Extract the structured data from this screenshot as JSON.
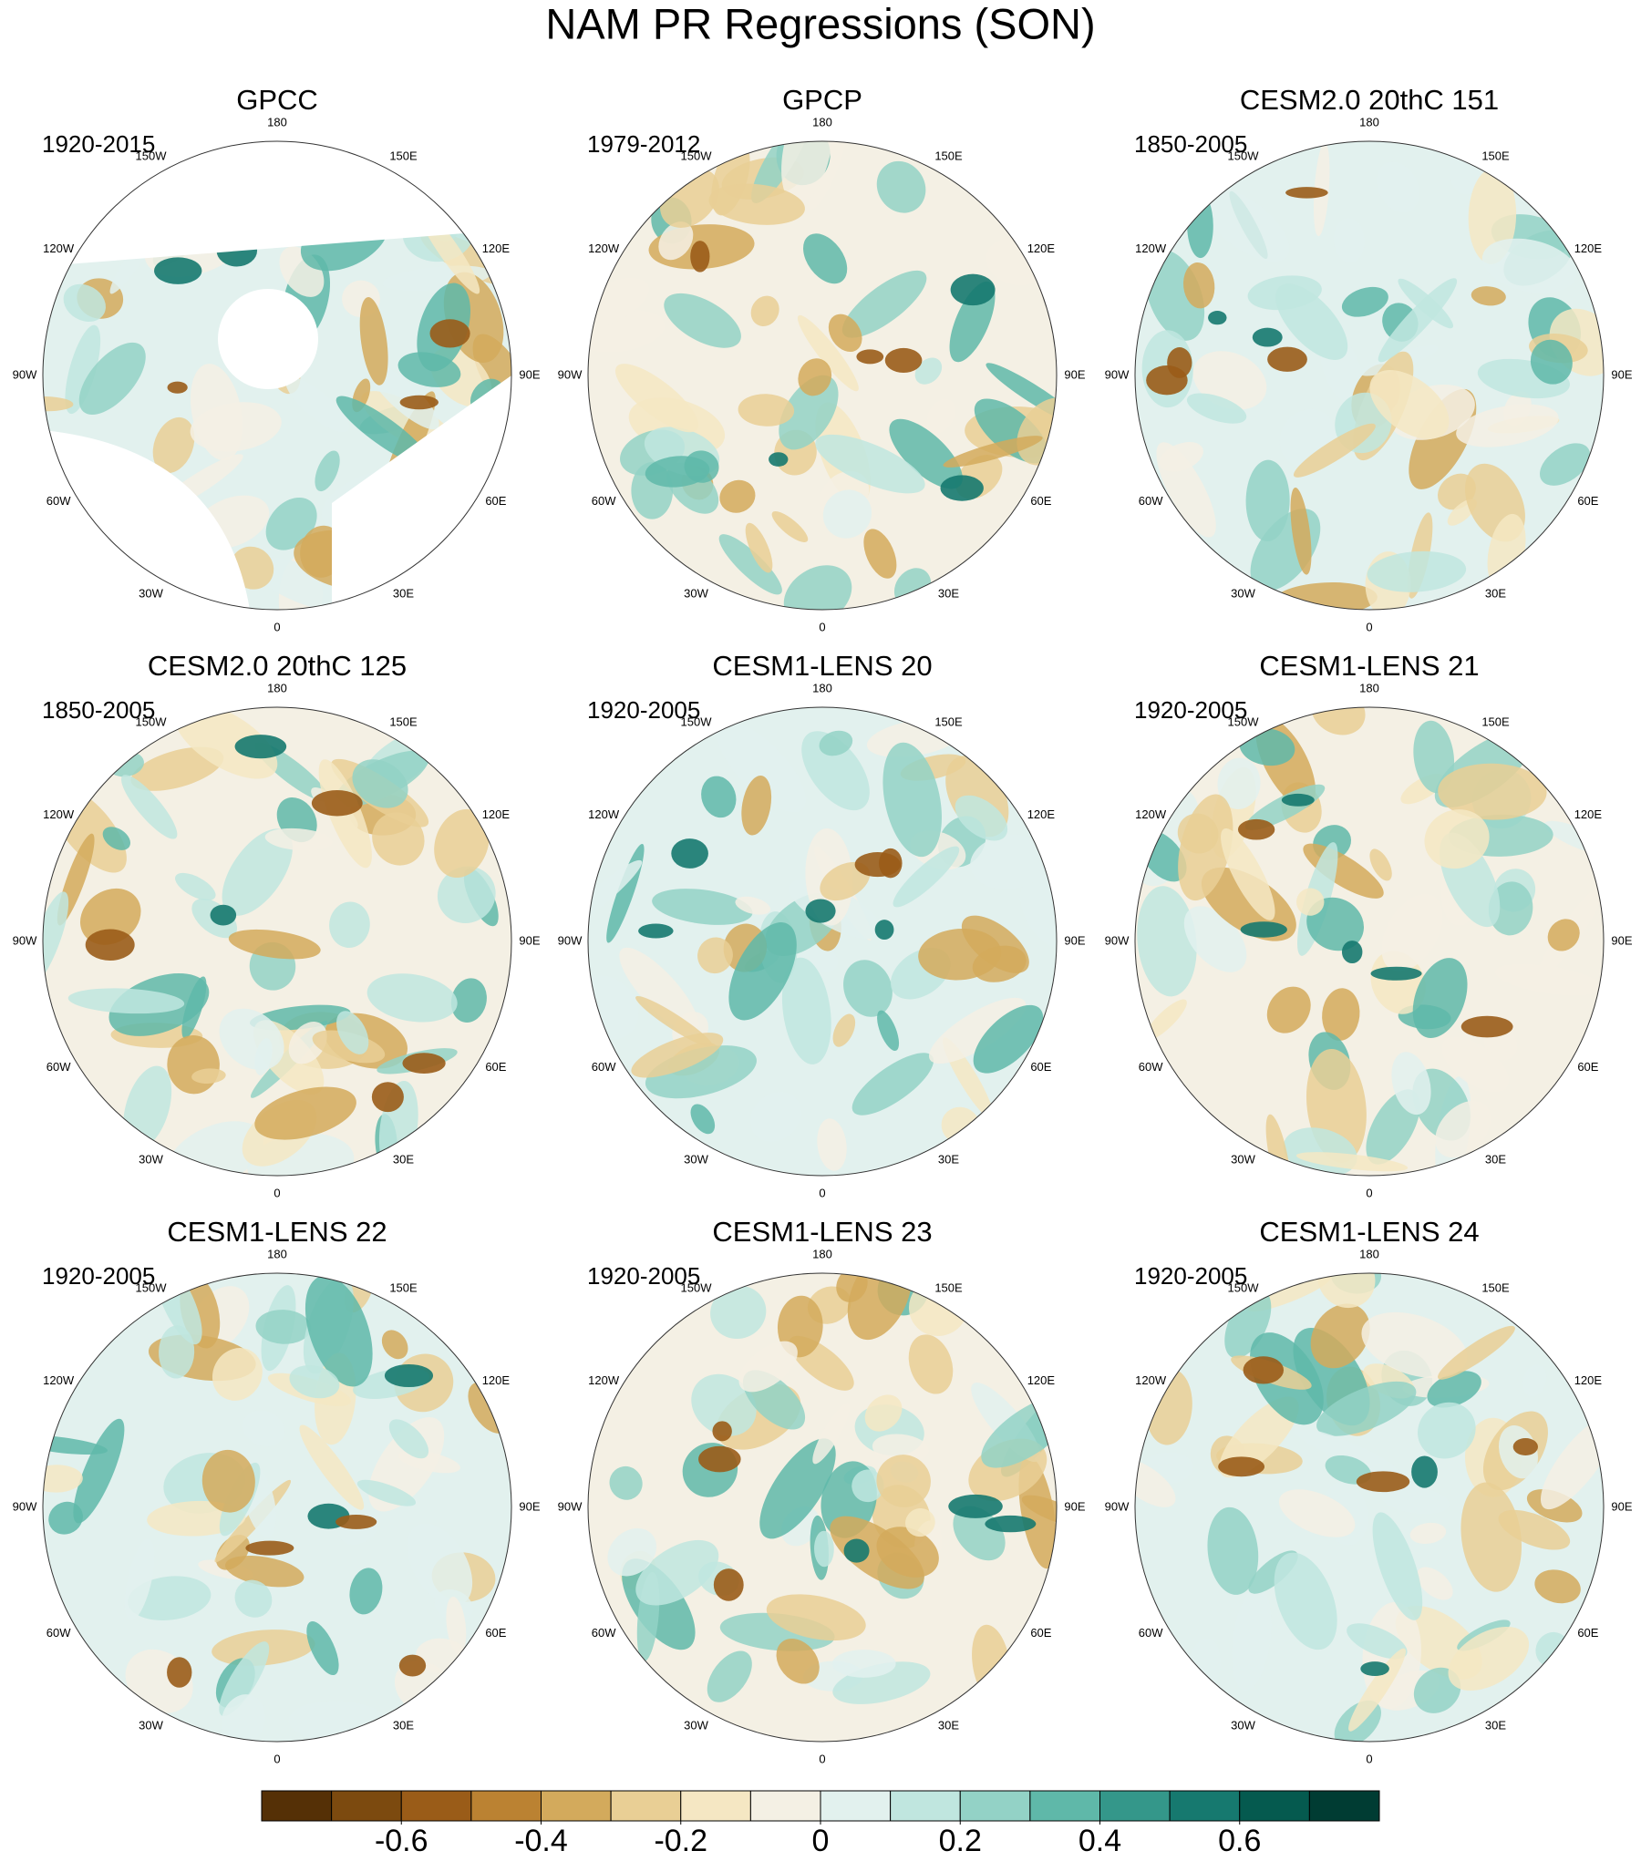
{
  "title": "NAM PR Regressions (SON)",
  "panels": [
    {
      "title": "GPCC",
      "period": "1920-2015"
    },
    {
      "title": "GPCP",
      "period": "1979-2012"
    },
    {
      "title": "CESM2.0 20thC 151",
      "period": "1850-2005"
    },
    {
      "title": "CESM2.0 20thC 125",
      "period": "1850-2005"
    },
    {
      "title": "CESM1-LENS 20",
      "period": "1920-2005"
    },
    {
      "title": "CESM1-LENS 21",
      "period": "1920-2005"
    },
    {
      "title": "CESM1-LENS 22",
      "period": "1920-2005"
    },
    {
      "title": "CESM1-LENS 23",
      "period": "1920-2005"
    },
    {
      "title": "CESM1-LENS 24",
      "period": "1920-2005"
    }
  ],
  "lon_labels": [
    "0",
    "30E",
    "60E",
    "90E",
    "120E",
    "150E",
    "180",
    "150W",
    "120W",
    "90W",
    "60W",
    "30W"
  ],
  "colorbar": {
    "xlim": [
      -0.8,
      0.8
    ],
    "xticks": [
      -0.6,
      -0.4,
      -0.2,
      0,
      0.2,
      0.4,
      0.6
    ],
    "colors": [
      "#553006",
      "#7c4a0f",
      "#9a5c18",
      "#bb8232",
      "#d3aa5c",
      "#e9cf95",
      "#f5e7c3",
      "#f4f0e4",
      "#e2f1ee",
      "#c0e6df",
      "#93d2c6",
      "#5fb8a9",
      "#34978a",
      "#16796f",
      "#055a4f",
      "#003c33"
    ]
  }
}
